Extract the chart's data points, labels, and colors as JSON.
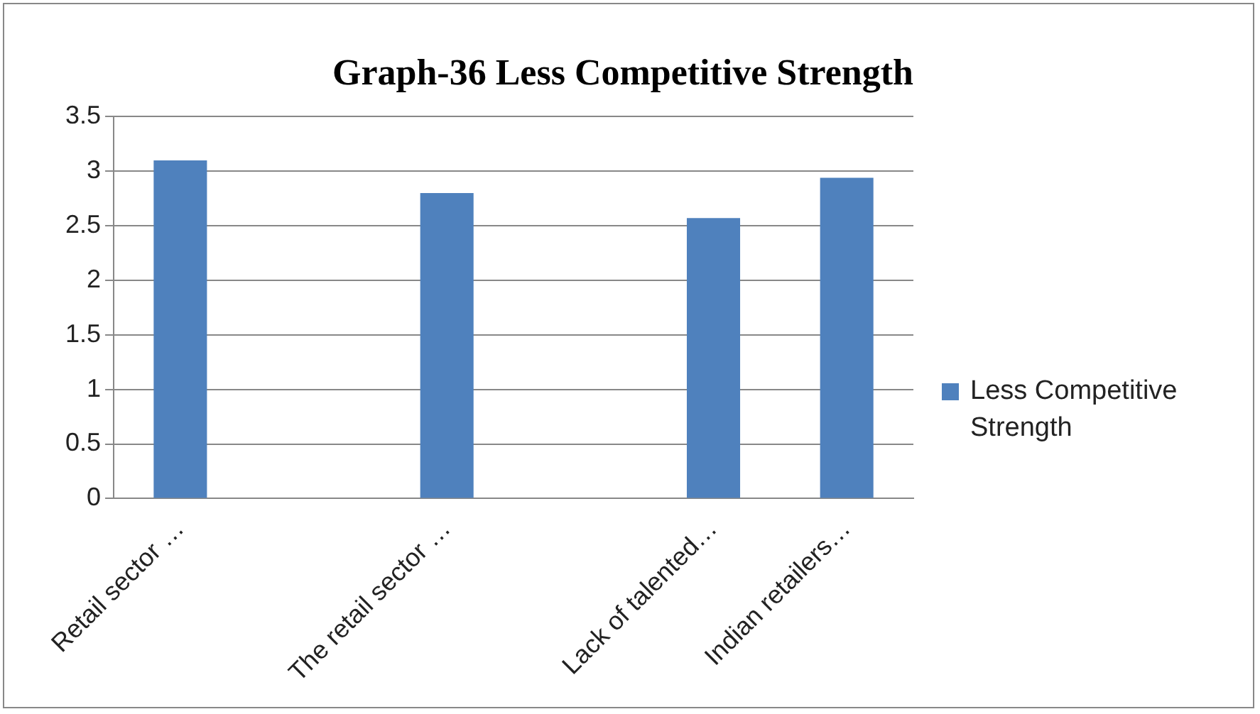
{
  "chart_data": {
    "type": "bar",
    "title": "Graph-36 Less Competitive Strength",
    "categories": [
      "Retail sector …",
      null,
      "The retail sector …",
      null,
      "Lack of talented…",
      "Indian retailers…"
    ],
    "series": [
      {
        "name": "Less Competitive Strength",
        "color": "#4f81bd",
        "values": [
          3.1,
          null,
          2.8,
          null,
          2.57,
          2.94
        ]
      }
    ],
    "ylim": [
      0,
      3.5
    ],
    "yticks": [
      0,
      0.5,
      1,
      1.5,
      2,
      2.5,
      3,
      3.5
    ],
    "grid": "y",
    "legend": "right"
  }
}
